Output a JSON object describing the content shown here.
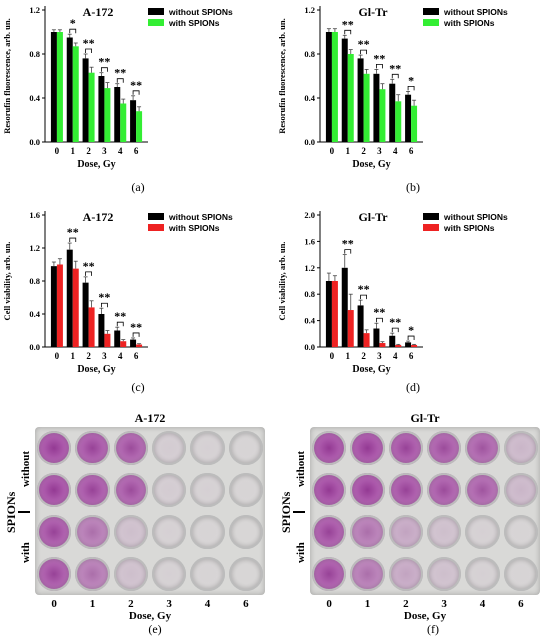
{
  "chart_data": [
    {
      "type": "bar",
      "panel": "(a)",
      "title": "A-172",
      "xlabel": "Dose, Gy",
      "ylabel": "Resorufin fluorescence, arb. un.",
      "categories": [
        "0",
        "1",
        "2",
        "3",
        "4",
        "6"
      ],
      "ylim": [
        0,
        1.2
      ],
      "yticks": [
        "0.0",
        "0.4",
        "0.8",
        "1.2"
      ],
      "series": [
        {
          "name": "without SPIONs",
          "color": "#000000",
          "values": [
            1.0,
            0.95,
            0.76,
            0.6,
            0.5,
            0.38
          ],
          "errors": [
            0.02,
            0.03,
            0.04,
            0.03,
            0.03,
            0.04
          ]
        },
        {
          "name": "with SPIONs",
          "color": "#33ee33",
          "values": [
            1.0,
            0.87,
            0.63,
            0.49,
            0.35,
            0.28
          ],
          "errors": [
            0.02,
            0.03,
            0.05,
            0.05,
            0.04,
            0.04
          ]
        }
      ],
      "significance": [
        "",
        "*",
        "**",
        "**",
        "**",
        "**"
      ]
    },
    {
      "type": "bar",
      "panel": "(b)",
      "title": "Gl-Tr",
      "xlabel": "Dose, Gy",
      "ylabel": "Resorufin fluorescence, arb. un.",
      "categories": [
        "0",
        "1",
        "2",
        "3",
        "4",
        "6"
      ],
      "ylim": [
        0,
        1.2
      ],
      "yticks": [
        "0.0",
        "0.4",
        "0.8",
        "1.2"
      ],
      "series": [
        {
          "name": "without SPIONs",
          "color": "#000000",
          "values": [
            1.0,
            0.94,
            0.76,
            0.62,
            0.53,
            0.43
          ],
          "errors": [
            0.03,
            0.03,
            0.03,
            0.04,
            0.04,
            0.03
          ]
        },
        {
          "name": "with SPIONs",
          "color": "#33ee33",
          "values": [
            1.0,
            0.8,
            0.62,
            0.48,
            0.37,
            0.33
          ],
          "errors": [
            0.03,
            0.04,
            0.04,
            0.05,
            0.06,
            0.05
          ]
        }
      ],
      "significance": [
        "",
        "**",
        "**",
        "**",
        "**",
        "*"
      ]
    },
    {
      "type": "bar",
      "panel": "(c)",
      "title": "A-172",
      "xlabel": "Dose, Gy",
      "ylabel": "Cell viability, arb. un.",
      "categories": [
        "0",
        "1",
        "2",
        "3",
        "4",
        "6"
      ],
      "ylim": [
        0,
        1.6
      ],
      "yticks": [
        "0.0",
        "0.4",
        "0.8",
        "1.2",
        "1.6"
      ],
      "series": [
        {
          "name": "without SPIONs",
          "color": "#000000",
          "values": [
            0.98,
            1.18,
            0.78,
            0.4,
            0.2,
            0.09
          ],
          "errors": [
            0.05,
            0.08,
            0.07,
            0.07,
            0.04,
            0.02
          ]
        },
        {
          "name": "with SPIONs",
          "color": "#ee2222",
          "values": [
            1.0,
            0.95,
            0.48,
            0.16,
            0.07,
            0.03
          ],
          "errors": [
            0.07,
            0.09,
            0.08,
            0.04,
            0.02,
            0.01
          ]
        }
      ],
      "significance": [
        "",
        "**",
        "**",
        "**",
        "**",
        "**"
      ]
    },
    {
      "type": "bar",
      "panel": "(d)",
      "title": "Gl-Tr",
      "xlabel": "Dose, Gy",
      "ylabel": "Cell viability, arb. un.",
      "categories": [
        "0",
        "1",
        "2",
        "3",
        "4",
        "6"
      ],
      "ylim": [
        0,
        2.0
      ],
      "yticks": [
        "0.0",
        "0.4",
        "0.8",
        "1.2",
        "1.6",
        "2.0"
      ],
      "series": [
        {
          "name": "without SPIONs",
          "color": "#000000",
          "values": [
            1.0,
            1.2,
            0.63,
            0.28,
            0.17,
            0.07
          ],
          "errors": [
            0.12,
            0.2,
            0.08,
            0.08,
            0.04,
            0.02
          ]
        },
        {
          "name": "with SPIONs",
          "color": "#ee2222",
          "values": [
            1.0,
            0.56,
            0.21,
            0.06,
            0.03,
            0.03
          ],
          "errors": [
            0.08,
            0.24,
            0.05,
            0.02,
            0.01,
            0.01
          ]
        }
      ],
      "significance": [
        "",
        "**",
        "**",
        "**",
        "**",
        "*"
      ]
    }
  ],
  "captions": [
    "(a)",
    "(b)",
    "(c)",
    "(d)",
    "(e)",
    "(f)"
  ],
  "photos": [
    {
      "title": "A-172",
      "doses": [
        "0",
        "1",
        "2",
        "3",
        "4",
        "6"
      ],
      "xlabel": "Dose, Gy",
      "row_group_label": "SPIONs",
      "row_labels": [
        "without",
        "with"
      ],
      "stain": [
        [
          0.9,
          0.85,
          0.8,
          0.08,
          0.05,
          0.03
        ],
        [
          0.9,
          0.85,
          0.8,
          0.08,
          0.05,
          0.03
        ],
        [
          0.85,
          0.6,
          0.15,
          0.05,
          0.03,
          0.02
        ],
        [
          0.85,
          0.6,
          0.15,
          0.05,
          0.03,
          0.02
        ]
      ]
    },
    {
      "title": "Gl-Tr",
      "doses": [
        "0",
        "1",
        "2",
        "3",
        "4",
        "6"
      ],
      "xlabel": "Dose, Gy",
      "row_group_label": "SPIONs",
      "row_labels": [
        "without",
        "with"
      ],
      "stain": [
        [
          0.9,
          0.9,
          0.85,
          0.8,
          0.75,
          0.2
        ],
        [
          0.9,
          0.9,
          0.85,
          0.8,
          0.75,
          0.2
        ],
        [
          0.85,
          0.6,
          0.3,
          0.15,
          0.05,
          0.03
        ],
        [
          0.85,
          0.6,
          0.3,
          0.15,
          0.05,
          0.03
        ]
      ]
    }
  ]
}
